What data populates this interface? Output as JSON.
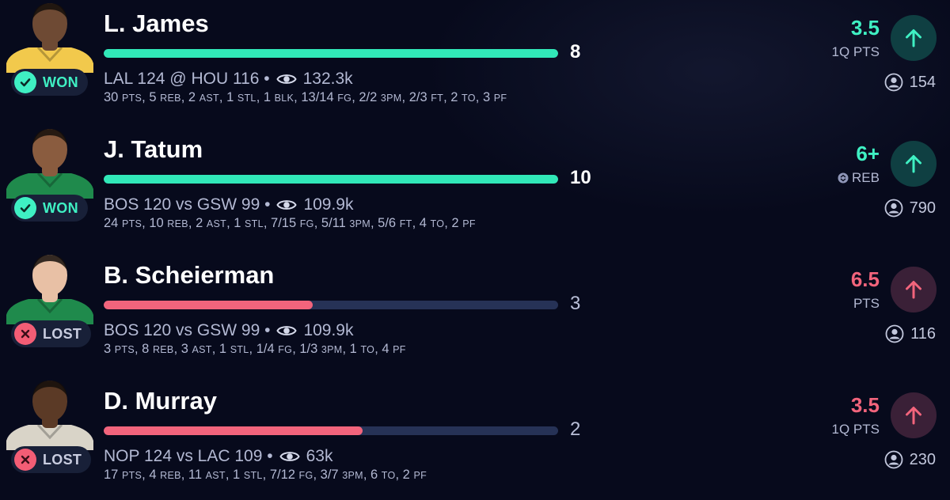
{
  "colors": {
    "won_accent": "#3ff0c3",
    "lost_accent": "#f2647c",
    "track": "#263256",
    "background": "#070a1c"
  },
  "picks": [
    {
      "player": "L. James",
      "status": "WON",
      "result": "won",
      "bar_value": "8",
      "progress": 1.0,
      "game": "LAL 124 @ HOU 116 •",
      "views": "132.3k",
      "stats": [
        [
          "30",
          "PTS"
        ],
        [
          "5",
          "REB"
        ],
        [
          "2",
          "AST"
        ],
        [
          "1",
          "STL"
        ],
        [
          "1",
          "BLK"
        ],
        [
          "13/14",
          "FG"
        ],
        [
          "2/2",
          "3PM"
        ],
        [
          "2/3",
          "FT"
        ],
        [
          "2",
          "TO"
        ],
        [
          "3",
          "PF"
        ]
      ],
      "line": "3.5",
      "line_label": "1Q PTS",
      "line_icon": "",
      "users": "154",
      "jersey": "#f2c94c",
      "skin": "#6e4a34"
    },
    {
      "player": "J. Tatum",
      "status": "WON",
      "result": "won",
      "bar_value": "10",
      "progress": 1.0,
      "game": "BOS 120 vs GSW 99 •",
      "views": "109.9k",
      "stats": [
        [
          "24",
          "PTS"
        ],
        [
          "10",
          "REB"
        ],
        [
          "2",
          "AST"
        ],
        [
          "1",
          "STL"
        ],
        [
          "7/15",
          "FG"
        ],
        [
          "5/11",
          "3PM"
        ],
        [
          "5/6",
          "FT"
        ],
        [
          "4",
          "TO"
        ],
        [
          "2",
          "PF"
        ]
      ],
      "line": "6+",
      "line_label": "REB",
      "line_icon": "swap-icon",
      "users": "790",
      "jersey": "#1f8a4c",
      "skin": "#8a5c3f"
    },
    {
      "player": "B. Scheierman",
      "status": "LOST",
      "result": "lost",
      "bar_value": "3",
      "progress": 0.46,
      "game": "BOS 120 vs GSW 99 •",
      "views": "109.9k",
      "stats": [
        [
          "3",
          "PTS"
        ],
        [
          "8",
          "REB"
        ],
        [
          "3",
          "AST"
        ],
        [
          "1",
          "STL"
        ],
        [
          "1/4",
          "FG"
        ],
        [
          "1/3",
          "3PM"
        ],
        [
          "1",
          "TO"
        ],
        [
          "4",
          "PF"
        ]
      ],
      "line": "6.5",
      "line_label": "PTS",
      "line_icon": "",
      "users": "116",
      "jersey": "#1f8a4c",
      "skin": "#e8c0a5"
    },
    {
      "player": "D. Murray",
      "status": "LOST",
      "result": "lost",
      "bar_value": "2",
      "progress": 0.57,
      "game": "NOP 124 vs LAC 109 •",
      "views": "63k",
      "stats": [
        [
          "17",
          "PTS"
        ],
        [
          "4",
          "REB"
        ],
        [
          "11",
          "AST"
        ],
        [
          "1",
          "STL"
        ],
        [
          "7/12",
          "FG"
        ],
        [
          "3/7",
          "3PM"
        ],
        [
          "6",
          "TO"
        ],
        [
          "2",
          "PF"
        ]
      ],
      "line": "3.5",
      "line_label": "1Q PTS",
      "line_icon": "",
      "users": "230",
      "jersey": "#d9d4c8",
      "skin": "#5b3a26"
    }
  ]
}
